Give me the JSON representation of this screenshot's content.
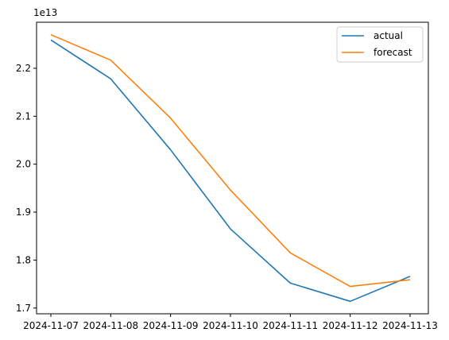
{
  "chart_data": {
    "type": "line",
    "x": [
      "2024-11-07",
      "2024-11-08",
      "2024-11-09",
      "2024-11-10",
      "2024-11-11",
      "2024-11-12",
      "2024-11-13"
    ],
    "series": [
      {
        "name": "actual",
        "color": "#1f77b4",
        "values": [
          2.259,
          2.178,
          2.03,
          1.865,
          1.752,
          1.714,
          1.766
        ]
      },
      {
        "name": "forecast",
        "color": "#ff7f0e",
        "values": [
          2.27,
          2.217,
          2.096,
          1.946,
          1.815,
          1.745,
          1.759
        ]
      }
    ],
    "y_ticks": [
      1.7,
      1.8,
      1.9,
      2.0,
      2.1,
      2.2
    ],
    "y_tick_labels": [
      "1.7",
      "1.8",
      "1.9",
      "2.0",
      "2.1",
      "2.2"
    ],
    "y_offset_label": "1e13",
    "ylim": [
      1.688,
      2.296
    ],
    "grid": false,
    "legend": "top-right",
    "xlabel": "",
    "ylabel": "",
    "title": ""
  }
}
